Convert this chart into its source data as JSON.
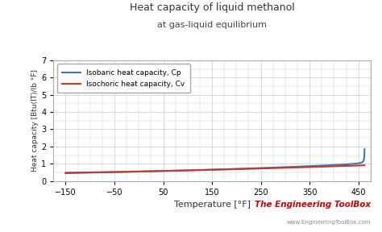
{
  "title_line1": "Heat capacity of liquid methanol",
  "title_line2": "at gas-liquid equilibrium",
  "xlabel": "Temperature [°F]",
  "ylabel": "Heat capacity [Btu(IT)/lb °F]",
  "legend_cp": "Isobaric heat capacity, Cp",
  "legend_cv": "Isochoric heat capacity, Cv",
  "color_cp": "#4472C4",
  "color_cv": "#C0392B",
  "xlim": [
    -175,
    475
  ],
  "ylim": [
    0,
    7
  ],
  "xticks": [
    -150,
    -50,
    50,
    150,
    250,
    350,
    450
  ],
  "yticks": [
    0,
    1,
    2,
    3,
    4,
    5,
    6,
    7
  ],
  "bg_color": "#FFFFFF",
  "grid_color": "#CCCCCC",
  "watermark_line1": "The Engineering ToolBox",
  "watermark_line2": "www.EngineeringToolBox.com",
  "watermark_color": "#CC0000",
  "watermark2_color": "#888888",
  "critical_temp_F": 463.0
}
